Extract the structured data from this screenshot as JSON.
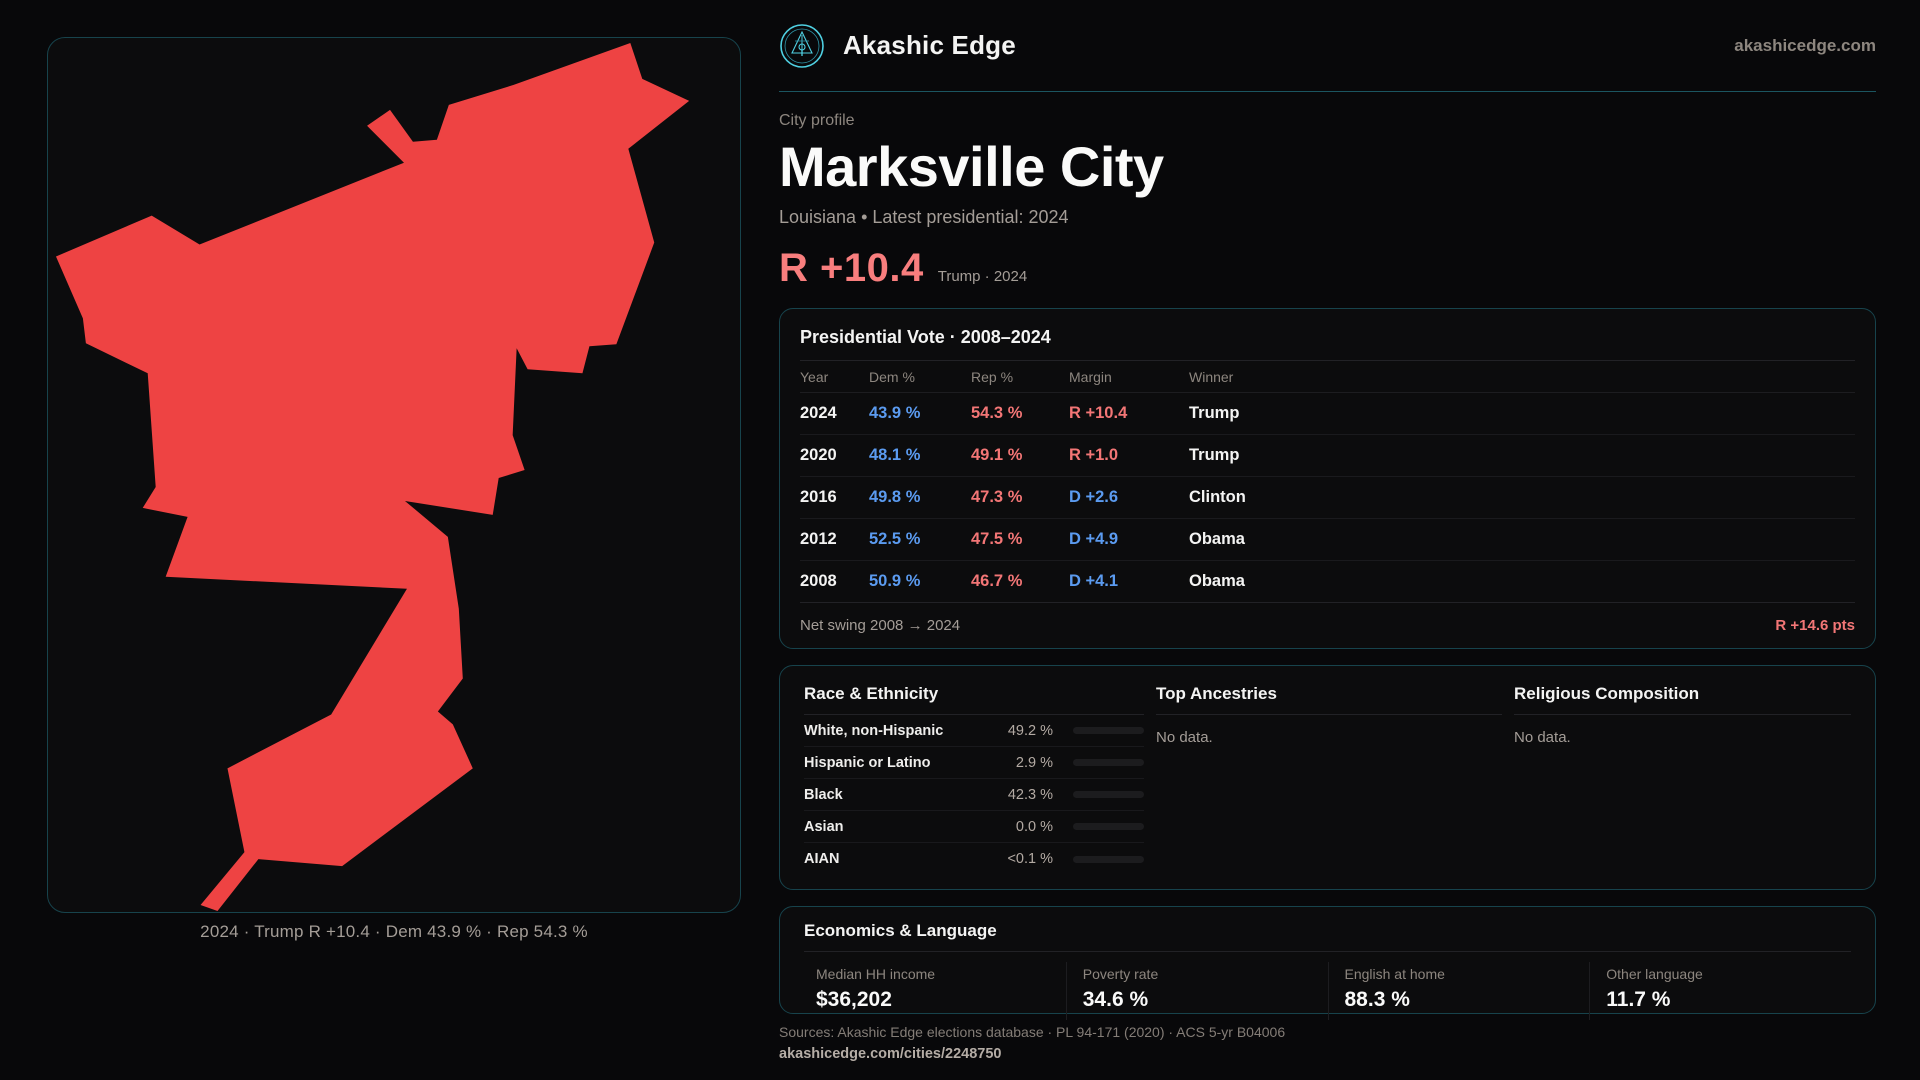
{
  "brand": {
    "name": "Akashic Edge",
    "domain": "akashicedge.com"
  },
  "profile": {
    "kicker": "City profile",
    "title": "Marksville City",
    "subtitle": "Louisiana • Latest presidential: 2024",
    "headline_margin": "R +10.4",
    "headline_note": "Trump · 2024"
  },
  "map": {
    "caption": "2024 · Trump R +10.4 · Dem 43.9 % · Rep 54.3 %",
    "fill": "#ee4343"
  },
  "vote_table": {
    "title": "Presidential Vote · 2008–2024",
    "columns": [
      "Year",
      "Dem %",
      "Rep %",
      "Margin",
      "Winner"
    ],
    "rows": [
      {
        "year": "2024",
        "dem": "43.9 %",
        "rep": "54.3 %",
        "margin": "R +10.4",
        "winner": "Trump",
        "lean": "rep"
      },
      {
        "year": "2020",
        "dem": "48.1 %",
        "rep": "49.1 %",
        "margin": "R +1.0",
        "winner": "Trump",
        "lean": "rep"
      },
      {
        "year": "2016",
        "dem": "49.8 %",
        "rep": "47.3 %",
        "margin": "D +2.6",
        "winner": "Clinton",
        "lean": "dem"
      },
      {
        "year": "2012",
        "dem": "52.5 %",
        "rep": "47.5 %",
        "margin": "D +4.9",
        "winner": "Obama",
        "lean": "dem"
      },
      {
        "year": "2008",
        "dem": "50.9 %",
        "rep": "46.7 %",
        "margin": "D +4.1",
        "winner": "Obama",
        "lean": "dem"
      }
    ],
    "footer_label": "Net swing 2008 → 2024",
    "footer_value": "R +14.6 pts"
  },
  "race": {
    "title": "Race & Ethnicity",
    "rows": [
      {
        "label": "White, non-Hispanic",
        "value": "49.2 %",
        "pct": 49.2,
        "color": "#8b9cb6"
      },
      {
        "label": "Hispanic or Latino",
        "value": "2.9 %",
        "pct": 2.9,
        "color": "#e8a33d"
      },
      {
        "label": "Black",
        "value": "42.3 %",
        "pct": 42.3,
        "color": "#9f85e8"
      },
      {
        "label": "Asian",
        "value": "0.0 %",
        "pct": 0,
        "color": "#8b9cb6"
      },
      {
        "label": "AIAN",
        "value": "<0.1 %",
        "pct": 0,
        "color": "#8b9cb6"
      }
    ]
  },
  "ancestries": {
    "title": "Top Ancestries",
    "empty": "No data."
  },
  "religion": {
    "title": "Religious Composition",
    "empty": "No data."
  },
  "economics": {
    "title": "Economics & Language",
    "stats": [
      {
        "label": "Median HH income",
        "value": "$36,202"
      },
      {
        "label": "Poverty rate",
        "value": "34.6 %"
      },
      {
        "label": "English at home",
        "value": "88.3 %"
      },
      {
        "label": "Other language",
        "value": "11.7 %"
      }
    ]
  },
  "footer": {
    "sources": "Sources: Akashic Edge elections database · PL 94-171 (2020) · ACS 5-yr B04006",
    "permalink": "akashicedge.com/cities/2248750"
  },
  "colors": {
    "accent_teal": "#4fd0e2",
    "dem_blue": "#5b9bf0",
    "rep_red": "#f37676",
    "map_red": "#ee4343"
  }
}
